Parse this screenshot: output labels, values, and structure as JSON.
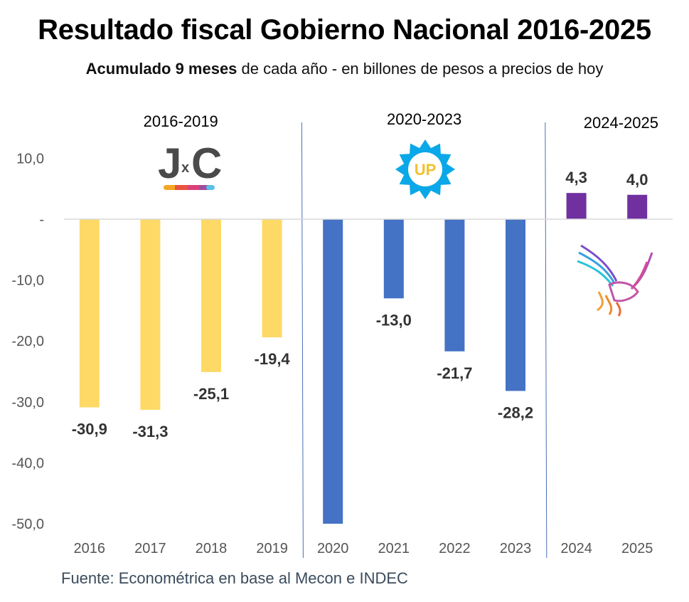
{
  "title": "Resultado fiscal Gobierno Nacional 2016-2025",
  "subtitle_bold": "Acumulado 9 meses",
  "subtitle_rest": " de cada año - en billones de pesos a precios de hoy",
  "source": "Fuente: Econométrica en base al Mecon e INDEC",
  "logos": {
    "jxc": "JxC",
    "up": "UP"
  },
  "chart_data": {
    "type": "bar",
    "title": "Resultado fiscal Gobierno Nacional 2016-2025",
    "categories": [
      "2016",
      "2017",
      "2018",
      "2019",
      "2020",
      "2021",
      "2022",
      "2023",
      "2024",
      "2025"
    ],
    "values": [
      -30.9,
      -31.3,
      -25.1,
      -19.4,
      -50.0,
      -13.0,
      -21.7,
      -28.2,
      4.3,
      4.0
    ],
    "data_labels": [
      "-30,9",
      "-31,3",
      "-25,1",
      "-19,4",
      "",
      "-13,0",
      "-21,7",
      "-28,2",
      "4,3",
      "4,0"
    ],
    "colors": [
      "#FFD966",
      "#FFD966",
      "#FFD966",
      "#FFD966",
      "#4472C4",
      "#4472C4",
      "#4472C4",
      "#4472C4",
      "#7030A0",
      "#7030A0"
    ],
    "ylim": [
      -50,
      10
    ],
    "yticks": [
      10,
      0,
      -10,
      -20,
      -30,
      -40,
      -50
    ],
    "ytick_labels": [
      "10,0",
      "-",
      "-10,0",
      "-20,0",
      "-30,0",
      "-40,0",
      "-50,0"
    ],
    "periods": [
      {
        "label": "2016-2019",
        "first": 0,
        "last": 3
      },
      {
        "label": "2020-2023",
        "first": 4,
        "last": 7
      },
      {
        "label": "2024-2025",
        "first": 8,
        "last": 9
      }
    ],
    "grid": false
  }
}
